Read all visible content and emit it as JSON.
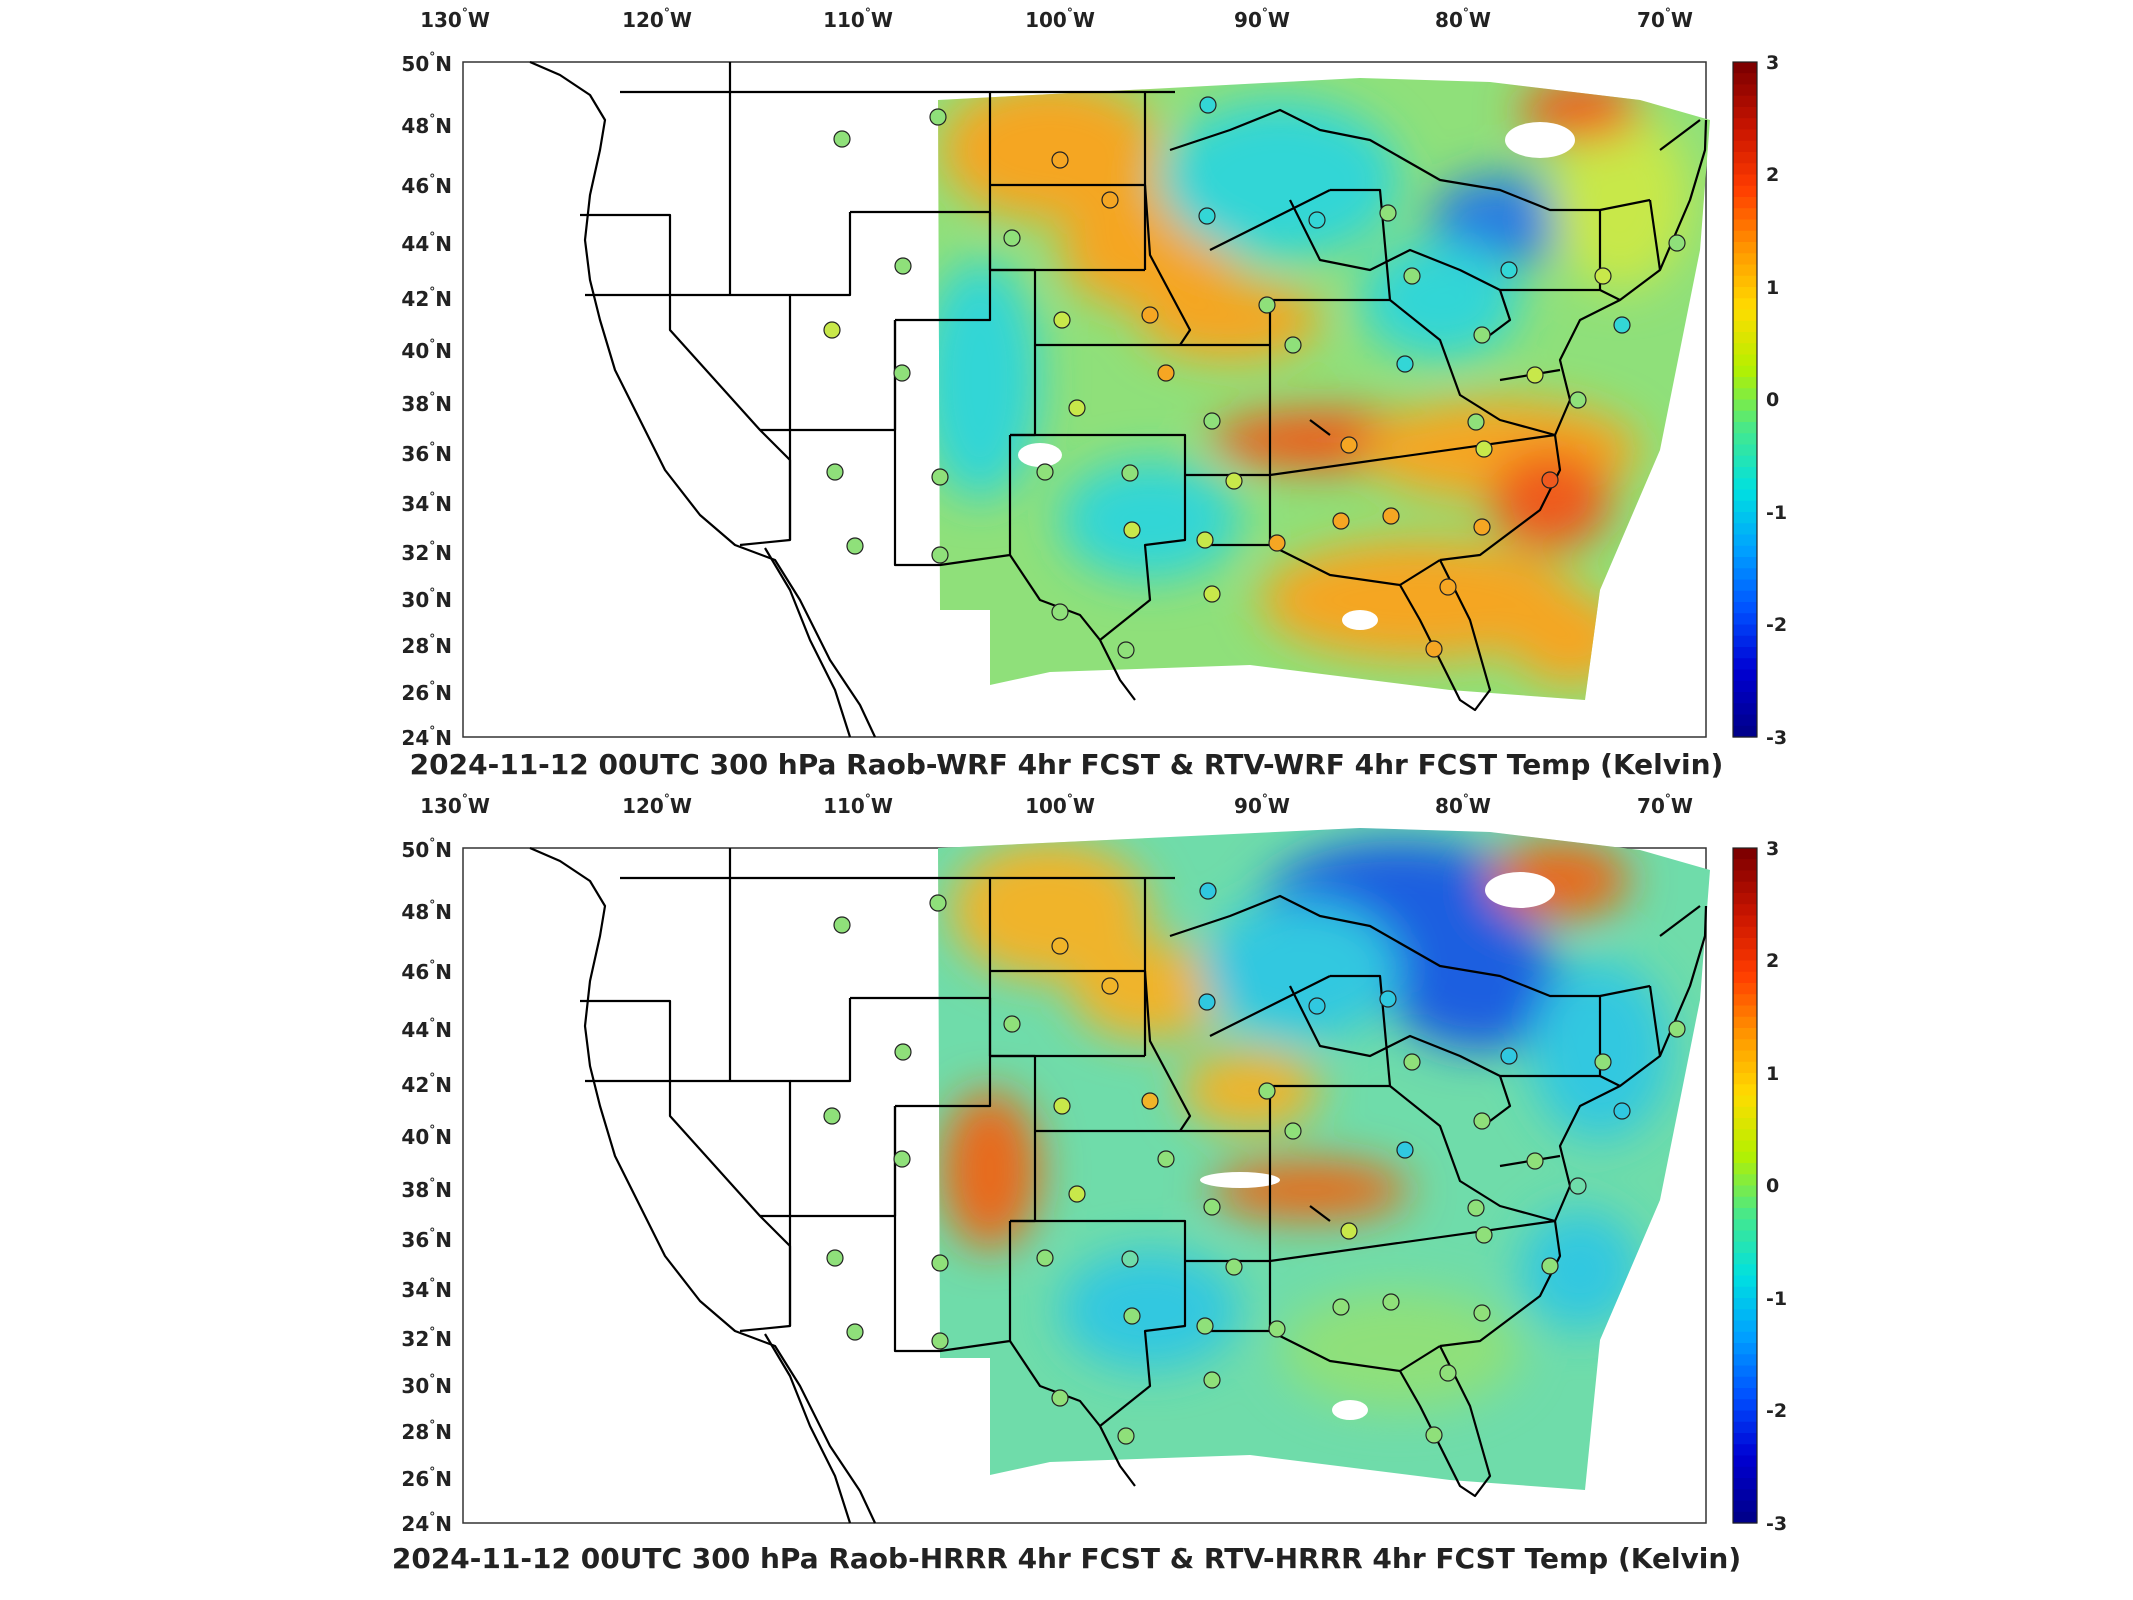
{
  "colorbar": {
    "ticks": [
      "3",
      "2",
      "1",
      "0",
      "-1",
      "-2",
      "-3"
    ],
    "colors": [
      "#7f0000",
      "#c81400",
      "#ff3c00",
      "#ff9600",
      "#ffdc00",
      "#b4f000",
      "#46e88c",
      "#00e0e0",
      "#00a0ff",
      "#0050ff",
      "#0000d2",
      "#00008c"
    ]
  },
  "axes": {
    "lon_labels": [
      "130",
      "120",
      "110",
      "100",
      "90",
      "80",
      "70"
    ],
    "lon_hemi": "W",
    "lat_labels": [
      "50",
      "48",
      "46",
      "44",
      "42",
      "40",
      "38",
      "36",
      "34",
      "32",
      "30",
      "28",
      "26",
      "24"
    ],
    "lat_hemi": "N",
    "deg_symbol": "°"
  },
  "panels": [
    {
      "title": "2024-11-12 00UTC 300 hPa Raob-WRF 4hr FCST & RTV-WRF 4hr FCST Temp (Kelvin)",
      "field_base": "#8fe07a",
      "warm": "#f5a623",
      "hot": "#ef5a1e",
      "cool": "#33d6d6",
      "cold": "#2a7de1"
    },
    {
      "title": "2024-11-12 00UTC 300 hPa Raob-HRRR 4hr FCST & RTV-HRRR 4hr FCST Temp (Kelvin)",
      "field_base": "#6fdcaa",
      "warm": "#f0b429",
      "hot": "#e86a1c",
      "cool": "#30c8e0",
      "cold": "#1e5fe0"
    }
  ]
}
